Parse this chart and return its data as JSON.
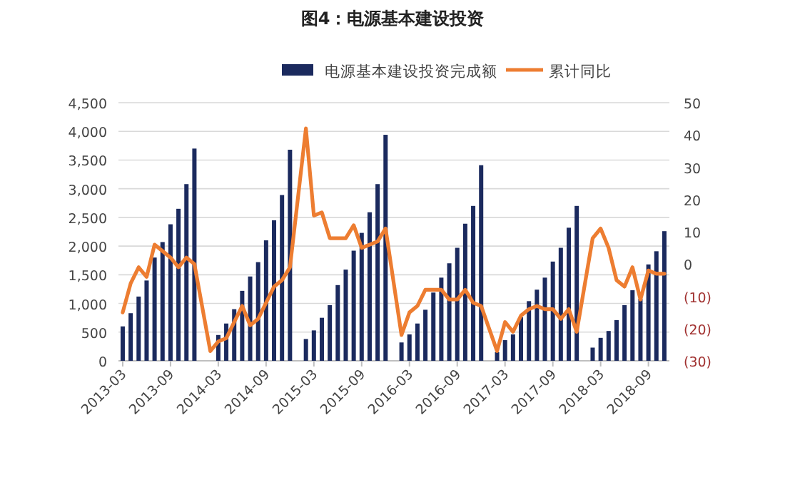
{
  "chart_data": {
    "type": "bar",
    "title": "图4：电源基本建设投资",
    "x": [
      "2013-03",
      "2013-04",
      "2013-05",
      "2013-06",
      "2013-07",
      "2013-08",
      "2013-09",
      "2013-10",
      "2013-11",
      "2013-12",
      "2014-02",
      "2014-03",
      "2014-04",
      "2014-05",
      "2014-06",
      "2014-07",
      "2014-08",
      "2014-09",
      "2014-10",
      "2014-11",
      "2014-12",
      "2015-02",
      "2015-03",
      "2015-04",
      "2015-05",
      "2015-06",
      "2015-07",
      "2015-08",
      "2015-09",
      "2015-10",
      "2015-11",
      "2015-12",
      "2016-02",
      "2016-03",
      "2016-04",
      "2016-05",
      "2016-06",
      "2016-07",
      "2016-08",
      "2016-09",
      "2016-10",
      "2016-11",
      "2016-12",
      "2017-02",
      "2017-03",
      "2017-04",
      "2017-05",
      "2017-06",
      "2017-07",
      "2017-08",
      "2017-09",
      "2017-10",
      "2017-11",
      "2017-12",
      "2018-02",
      "2018-03",
      "2018-04",
      "2018-05",
      "2018-06",
      "2018-07",
      "2018-08",
      "2018-09",
      "2018-10",
      "2018-11"
    ],
    "xlim": [
      "2013-02-15",
      "2018-11-20"
    ],
    "xticks": [
      "2013-03",
      "2013-09",
      "2014-03",
      "2014-09",
      "2015-03",
      "2015-09",
      "2016-03",
      "2016-09",
      "2017-03",
      "2017-09",
      "2018-03",
      "2018-09"
    ],
    "ylim": [
      0,
      4500
    ],
    "yticks": [
      {
        "value": 0,
        "label": "0"
      },
      {
        "value": 500,
        "label": "500"
      },
      {
        "value": 1000,
        "label": "1,000"
      },
      {
        "value": 1500,
        "label": "1,500"
      },
      {
        "value": 2000,
        "label": "2,000"
      },
      {
        "value": 2500,
        "label": "2,500"
      },
      {
        "value": 3000,
        "label": "3,000"
      },
      {
        "value": 3500,
        "label": "3,500"
      },
      {
        "value": 4000,
        "label": "4,000"
      },
      {
        "value": 4500,
        "label": "4,500"
      }
    ],
    "y2lim": [
      -30,
      50
    ],
    "y2ticks": [
      {
        "value": -30,
        "label": "(30)"
      },
      {
        "value": -20,
        "label": "(20)"
      },
      {
        "value": -10,
        "label": "(10)"
      },
      0,
      10,
      20,
      30,
      40,
      50
    ],
    "grid": "y",
    "legend": "top",
    "series": [
      {
        "name": "电源基本建设投资完成额",
        "color": "#1b2a5e",
        "values": [
          600,
          830,
          1120,
          1400,
          1800,
          2070,
          2380,
          2650,
          3080,
          3700,
          null,
          450,
          650,
          900,
          1220,
          1470,
          1720,
          2100,
          2450,
          2890,
          3680,
          380,
          530,
          750,
          970,
          1320,
          1590,
          1920,
          2230,
          2590,
          3080,
          3940,
          320,
          460,
          650,
          890,
          1190,
          1450,
          1700,
          1970,
          2390,
          2700,
          3410,
          150,
          360,
          460,
          760,
          1040,
          1240,
          1450,
          1730,
          1970,
          2320,
          2700,
          230,
          400,
          520,
          710,
          970,
          1230,
          1080,
          1680,
          1910,
          2260
        ]
      },
      {
        "type": "line",
        "axis": "y2",
        "name": "累计同比",
        "color": "#ed7d31",
        "values": [
          -15,
          -6,
          -1,
          -4,
          6,
          4,
          2,
          -1,
          2,
          0,
          -27,
          -24,
          -23,
          -18,
          -13,
          -19,
          -17,
          -12,
          -7,
          -5,
          -1,
          42,
          15,
          16,
          8,
          8,
          8,
          12,
          5,
          6,
          7,
          11,
          -22,
          -15,
          -13,
          -8,
          -8,
          -8,
          -11,
          -11,
          -8,
          -12,
          -13,
          -27,
          -18,
          -21,
          -16,
          -14,
          -13,
          -14,
          -14,
          -17,
          -14,
          -21,
          8,
          11,
          5,
          -5,
          -7,
          -1,
          -11,
          -2,
          -3,
          -3
        ]
      }
    ]
  }
}
